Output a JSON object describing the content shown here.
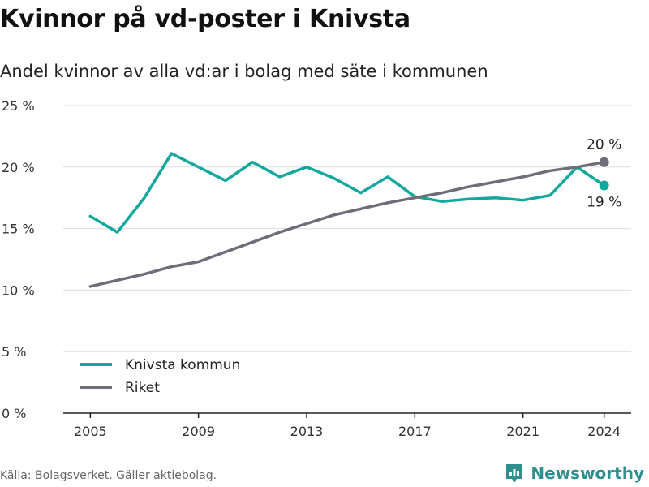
{
  "title": "Kvinnor på vd-poster i Knivsta",
  "subtitle": "Andel kvinnor av alla vd:ar i bolag med säte i kommunen",
  "source": "Källa: Bolagsverket. Gäller aktiebolag.",
  "brand": {
    "name": "Newsworthy",
    "icon": "bar-chart-logo-icon"
  },
  "colors": {
    "knivsta": "#13a89e",
    "riket": "#6e6e78",
    "grid": "#dddddd",
    "axis": "#222222"
  },
  "chart_data": {
    "type": "line",
    "x_ticks": [
      "2005",
      "2009",
      "2013",
      "2017",
      "2021",
      "2024"
    ],
    "y_ticks": [
      "0 %",
      "5 %",
      "10 %",
      "15 %",
      "20 %",
      "25 %"
    ],
    "ylim": [
      0,
      25
    ],
    "xlim": [
      2004,
      2025
    ],
    "legend_position": "bottom-left",
    "grid": true,
    "series": [
      {
        "name": "Knivsta kommun",
        "color": "#13a89e",
        "end_label": "19 %",
        "x": [
          2005,
          2006,
          2007,
          2008,
          2009,
          2010,
          2011,
          2012,
          2013,
          2014,
          2015,
          2016,
          2017,
          2018,
          2019,
          2020,
          2021,
          2022,
          2023,
          2024
        ],
        "values": [
          16.0,
          14.7,
          17.5,
          21.1,
          20.0,
          18.9,
          20.4,
          19.2,
          20.0,
          19.1,
          17.9,
          19.2,
          17.6,
          17.2,
          17.4,
          17.5,
          17.3,
          17.7,
          20.0,
          18.5
        ]
      },
      {
        "name": "Riket",
        "color": "#6e6e78",
        "end_label": "20 %",
        "x": [
          2005,
          2006,
          2007,
          2008,
          2009,
          2010,
          2011,
          2012,
          2013,
          2014,
          2015,
          2016,
          2017,
          2018,
          2019,
          2020,
          2021,
          2022,
          2023,
          2024
        ],
        "values": [
          10.3,
          10.8,
          11.3,
          11.9,
          12.3,
          13.1,
          13.9,
          14.7,
          15.4,
          16.1,
          16.6,
          17.1,
          17.5,
          17.9,
          18.4,
          18.8,
          19.2,
          19.7,
          20.0,
          20.4
        ]
      }
    ]
  }
}
